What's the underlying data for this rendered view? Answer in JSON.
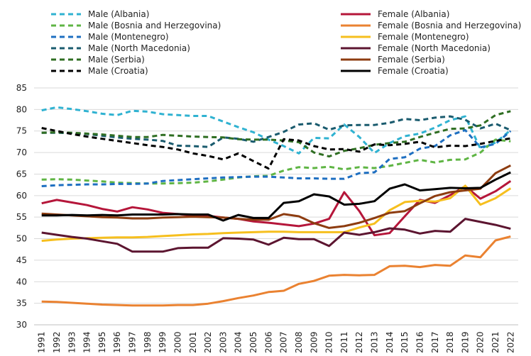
{
  "chart_data": {
    "type": "line",
    "title": "",
    "xlabel": "",
    "ylabel": "",
    "ylim": [
      30,
      85
    ],
    "yticks": [
      30,
      35,
      40,
      45,
      50,
      55,
      60,
      65,
      70,
      75,
      80,
      85
    ],
    "grid": "horizontal",
    "legend_position": "top",
    "categories": [
      "1991",
      "1992",
      "1993",
      "1994",
      "1995",
      "1996",
      "1997",
      "1998",
      "1999",
      "2000",
      "2001",
      "2002",
      "2003",
      "2004",
      "2005",
      "2006",
      "2007",
      "2008",
      "2009",
      "2010",
      "2011",
      "2012",
      "2013",
      "2014",
      "2015",
      "2016",
      "2017",
      "2018",
      "2019",
      "2020",
      "2021",
      "2022"
    ],
    "series": [
      {
        "name": "Male (Albania)",
        "color": "#2fb2d1",
        "dash": "dash",
        "values": [
          79.8,
          80.5,
          80.1,
          79.6,
          79.0,
          78.7,
          79.7,
          79.5,
          78.9,
          78.7,
          78.5,
          78.5,
          77.2,
          75.9,
          74.7,
          73.0,
          71.5,
          69.8,
          73.4,
          73.3,
          76.5,
          73.6,
          69.9,
          72.2,
          73.8,
          74.4,
          75.8,
          77.5,
          78.4,
          70.9,
          72.3,
          75.2
        ]
      },
      {
        "name": "Male (Bosnia and Herzegovina)",
        "color": "#5fb544",
        "dash": "dash",
        "values": [
          63.7,
          63.8,
          63.7,
          63.5,
          63.3,
          63.0,
          62.9,
          62.8,
          62.8,
          62.9,
          63.0,
          63.3,
          63.7,
          64.2,
          64.5,
          64.6,
          65.8,
          66.6,
          66.4,
          66.7,
          66.1,
          66.6,
          66.4,
          66.9,
          67.6,
          68.3,
          67.7,
          68.3,
          68.4,
          70.0,
          73.0,
          72.6
        ]
      },
      {
        "name": "Male (Montenegro)",
        "color": "#1e6fc1",
        "dash": "dash",
        "values": [
          62.2,
          62.4,
          62.5,
          62.6,
          62.6,
          62.7,
          62.7,
          62.8,
          63.4,
          63.6,
          63.8,
          64.0,
          64.2,
          64.3,
          64.4,
          64.4,
          64.2,
          64.0,
          64.0,
          63.9,
          63.9,
          65.2,
          65.4,
          68.5,
          68.9,
          70.9,
          71.5,
          74.0,
          75.2,
          71.2,
          72.0,
          75.0
        ]
      },
      {
        "name": "Male (North Macedonia)",
        "color": "#1a5b6e",
        "dash": "dash",
        "values": [
          74.6,
          74.6,
          74.5,
          74.3,
          73.9,
          73.5,
          73.2,
          73.0,
          72.7,
          71.6,
          71.5,
          71.3,
          73.5,
          73.2,
          72.5,
          73.6,
          74.8,
          76.5,
          76.8,
          75.3,
          76.3,
          76.4,
          76.4,
          76.9,
          77.8,
          77.5,
          78.1,
          78.4,
          77.6,
          75.6,
          76.7,
          75.2
        ]
      },
      {
        "name": "Male (Serbia)",
        "color": "#2f6e22",
        "dash": "dash",
        "values": [
          74.6,
          74.7,
          74.6,
          74.4,
          74.2,
          73.9,
          73.6,
          73.6,
          74.1,
          73.9,
          73.7,
          73.6,
          73.5,
          73.1,
          73.0,
          73.0,
          72.8,
          72.4,
          70.0,
          69.1,
          70.4,
          71.0,
          71.8,
          72.2,
          72.5,
          73.6,
          74.6,
          75.5,
          75.6,
          76.3,
          78.7,
          79.6
        ]
      },
      {
        "name": "Male (Croatia)",
        "color": "#000000",
        "dash": "dash",
        "values": [
          75.7,
          75.0,
          74.3,
          73.7,
          73.2,
          72.7,
          72.2,
          71.7,
          71.3,
          70.7,
          69.8,
          69.2,
          68.4,
          69.8,
          68.0,
          66.3,
          73.1,
          72.8,
          71.5,
          70.7,
          70.8,
          70.2,
          71.9,
          71.7,
          72.0,
          72.5,
          71.2,
          71.6,
          71.5,
          72.0,
          72.7,
          73.3
        ]
      },
      {
        "name": "Female (Albania)",
        "color": "#b5163a",
        "dash": "solid",
        "values": [
          58.2,
          59.0,
          58.4,
          57.8,
          56.9,
          56.3,
          57.3,
          56.8,
          56.0,
          55.7,
          55.4,
          55.3,
          54.9,
          54.6,
          54.0,
          53.7,
          53.3,
          52.9,
          53.5,
          54.6,
          60.8,
          56.4,
          50.8,
          51.3,
          55.2,
          59.0,
          58.3,
          60.1,
          62.2,
          59.3,
          61.0,
          63.4
        ]
      },
      {
        "name": "Female (Bosnia and Herzegovina)",
        "color": "#ea8231",
        "dash": "solid",
        "values": [
          35.4,
          35.3,
          35.1,
          34.9,
          34.7,
          34.6,
          34.5,
          34.5,
          34.5,
          34.6,
          34.6,
          34.9,
          35.5,
          36.2,
          36.8,
          37.6,
          37.9,
          39.5,
          40.2,
          41.4,
          41.6,
          41.5,
          41.6,
          43.6,
          43.7,
          43.4,
          43.9,
          43.7,
          46.1,
          45.7,
          49.6,
          50.5
        ]
      },
      {
        "name": "Female (Montenegro)",
        "color": "#f6bf1e",
        "dash": "solid",
        "values": [
          49.5,
          49.8,
          50.0,
          50.1,
          50.2,
          50.3,
          50.3,
          50.4,
          50.6,
          50.8,
          51.0,
          51.1,
          51.3,
          51.4,
          51.5,
          51.6,
          51.6,
          51.5,
          51.5,
          51.5,
          51.5,
          52.6,
          53.5,
          56.6,
          58.5,
          58.8,
          58.6,
          59.4,
          62.3,
          57.9,
          59.4,
          61.7
        ]
      },
      {
        "name": "Female (North Macedonia)",
        "color": "#5c1530",
        "dash": "solid",
        "values": [
          51.4,
          50.9,
          50.4,
          50.0,
          49.4,
          48.8,
          47.0,
          47.0,
          47.0,
          47.8,
          47.9,
          47.9,
          50.1,
          50.0,
          49.8,
          48.6,
          50.2,
          49.9,
          49.9,
          48.3,
          51.4,
          50.9,
          51.5,
          52.4,
          52.1,
          51.2,
          51.8,
          51.6,
          54.6,
          53.9,
          53.2,
          52.3
        ]
      },
      {
        "name": "Female (Serbia)",
        "color": "#8d3c10",
        "dash": "solid",
        "values": [
          55.8,
          55.6,
          55.4,
          55.2,
          55.0,
          54.9,
          54.7,
          54.7,
          54.9,
          55.0,
          55.1,
          55.0,
          54.9,
          54.6,
          54.4,
          54.4,
          55.7,
          55.2,
          53.6,
          52.5,
          52.9,
          53.7,
          54.8,
          56.0,
          56.4,
          58.2,
          59.9,
          60.8,
          61.2,
          61.6,
          65.2,
          67.0
        ]
      },
      {
        "name": "Female (Croatia)",
        "color": "#000000",
        "dash": "solid",
        "values": [
          55.4,
          55.4,
          55.5,
          55.4,
          55.5,
          55.4,
          55.6,
          55.6,
          55.6,
          55.7,
          55.6,
          55.6,
          54.2,
          55.5,
          54.8,
          54.8,
          58.3,
          58.7,
          60.3,
          59.8,
          57.9,
          58.1,
          58.7,
          61.6,
          62.6,
          61.2,
          61.5,
          61.8,
          61.7,
          61.8,
          63.7,
          65.4
        ]
      }
    ]
  }
}
